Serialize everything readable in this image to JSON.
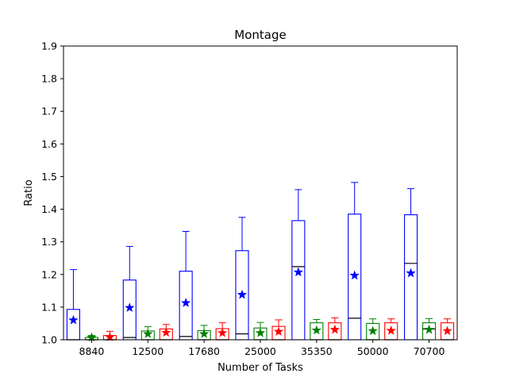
{
  "chart_data": {
    "type": "box",
    "title": "Montage",
    "xlabel": "Number of Tasks",
    "ylabel": "Ratio",
    "ylim": [
      1.0,
      1.9
    ],
    "yticks": [
      "1.0",
      "1.1",
      "1.2",
      "1.3",
      "1.4",
      "1.5",
      "1.6",
      "1.7",
      "1.8",
      "1.9"
    ],
    "categories": [
      "8840",
      "12500",
      "17680",
      "25000",
      "35350",
      "50000",
      "70700"
    ],
    "grid": false,
    "series": [
      {
        "color": "#0000ff",
        "boxes": [
          {
            "whislo": 1.0,
            "q1": 1.0,
            "med": 1.0,
            "q3": 1.093,
            "whishi": 1.215,
            "mean": 1.06
          },
          {
            "whislo": 1.0,
            "q1": 1.0,
            "med": 1.007,
            "q3": 1.183,
            "whishi": 1.286,
            "mean": 1.098
          },
          {
            "whislo": 1.0,
            "q1": 1.0,
            "med": 1.01,
            "q3": 1.21,
            "whishi": 1.332,
            "mean": 1.113
          },
          {
            "whislo": 1.0,
            "q1": 1.0,
            "med": 1.018,
            "q3": 1.273,
            "whishi": 1.375,
            "mean": 1.138
          },
          {
            "whislo": 1.0,
            "q1": 1.0,
            "med": 1.224,
            "q3": 1.365,
            "whishi": 1.46,
            "mean": 1.207
          },
          {
            "whislo": 1.0,
            "q1": 1.0,
            "med": 1.066,
            "q3": 1.385,
            "whishi": 1.482,
            "mean": 1.197
          },
          {
            "whislo": 1.0,
            "q1": 1.0,
            "med": 1.234,
            "q3": 1.383,
            "whishi": 1.463,
            "mean": 1.204
          }
        ]
      },
      {
        "color": "#008000",
        "boxes": [
          {
            "whislo": 1.0,
            "q1": 1.0,
            "med": 1.0,
            "q3": 1.007,
            "whishi": 1.013,
            "mean": 1.007
          },
          {
            "whislo": 1.0,
            "q1": 1.0,
            "med": 1.0,
            "q3": 1.027,
            "whishi": 1.04,
            "mean": 1.018
          },
          {
            "whislo": 1.0,
            "q1": 1.0,
            "med": 1.0,
            "q3": 1.028,
            "whishi": 1.044,
            "mean": 1.018
          },
          {
            "whislo": 1.0,
            "q1": 1.0,
            "med": 1.0,
            "q3": 1.036,
            "whishi": 1.053,
            "mean": 1.021
          },
          {
            "whislo": 1.0,
            "q1": 1.0,
            "med": 1.0,
            "q3": 1.052,
            "whishi": 1.062,
            "mean": 1.029
          },
          {
            "whislo": 1.0,
            "q1": 1.0,
            "med": 1.0,
            "q3": 1.05,
            "whishi": 1.064,
            "mean": 1.027
          },
          {
            "whislo": 1.0,
            "q1": 1.0,
            "med": 1.033,
            "q3": 1.052,
            "whishi": 1.065,
            "mean": 1.031
          }
        ]
      },
      {
        "color": "#ff0000",
        "boxes": [
          {
            "whislo": 1.0,
            "q1": 1.0,
            "med": 1.0,
            "q3": 1.013,
            "whishi": 1.026,
            "mean": 1.008
          },
          {
            "whislo": 1.0,
            "q1": 1.0,
            "med": 1.0,
            "q3": 1.033,
            "whishi": 1.047,
            "mean": 1.022
          },
          {
            "whislo": 1.0,
            "q1": 1.0,
            "med": 1.0,
            "q3": 1.034,
            "whishi": 1.052,
            "mean": 1.021
          },
          {
            "whislo": 1.0,
            "q1": 1.0,
            "med": 1.0,
            "q3": 1.041,
            "whishi": 1.061,
            "mean": 1.025
          },
          {
            "whislo": 1.0,
            "q1": 1.0,
            "med": 1.0,
            "q3": 1.052,
            "whishi": 1.067,
            "mean": 1.031
          },
          {
            "whislo": 1.0,
            "q1": 1.0,
            "med": 1.0,
            "q3": 1.052,
            "whishi": 1.064,
            "mean": 1.028
          },
          {
            "whislo": 1.0,
            "q1": 1.0,
            "med": 1.0,
            "q3": 1.052,
            "whishi": 1.064,
            "mean": 1.027
          }
        ]
      }
    ]
  }
}
